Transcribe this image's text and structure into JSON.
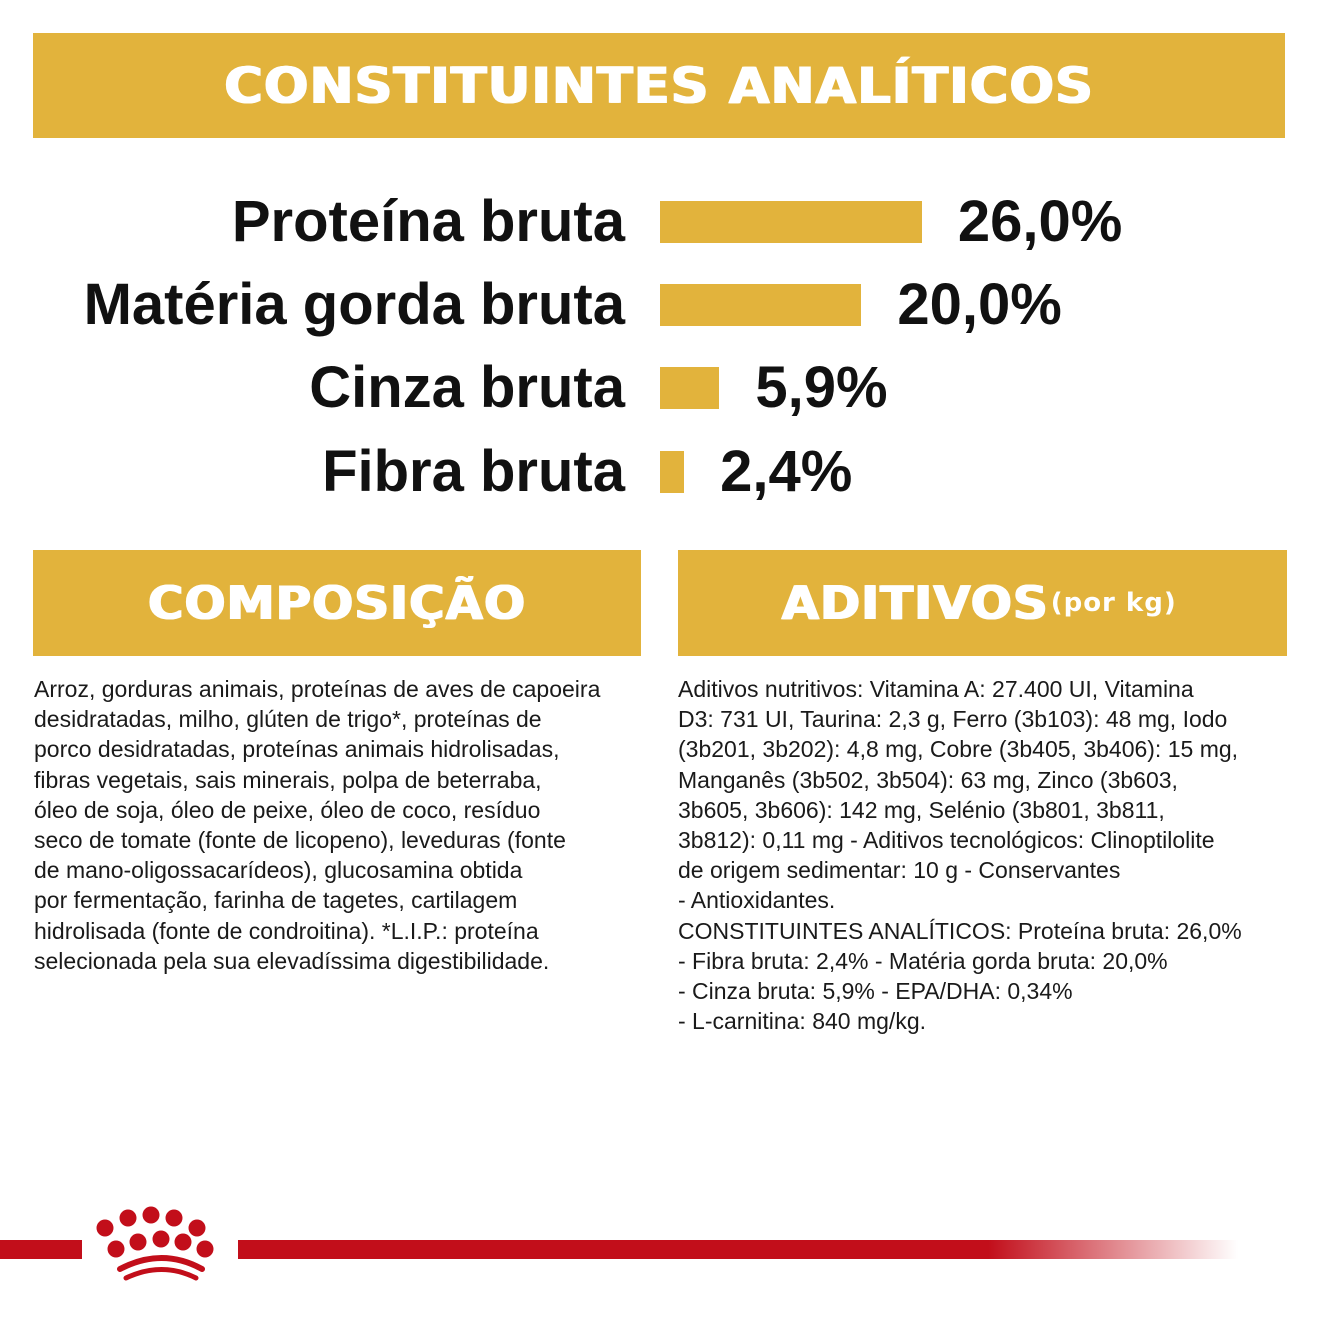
{
  "header": {
    "title": "CONSTITUINTES ANALÍTICOS"
  },
  "analytics": [
    {
      "label": "Proteína bruta",
      "value": "26,0%",
      "percent": 26.0
    },
    {
      "label": "Matéria gorda bruta",
      "value": "20,0%",
      "percent": 20.0
    },
    {
      "label": "Cinza bruta",
      "value": "5,9%",
      "percent": 5.9
    },
    {
      "label": "Fibra bruta",
      "value": "2,4%",
      "percent": 2.4
    }
  ],
  "composition": {
    "title": "COMPOSIÇÃO",
    "lines": [
      "Arroz, gorduras animais, proteínas de aves de capoeira",
      "desidratadas, milho, glúten de trigo*, proteínas de",
      "porco desidratadas, proteínas animais hidrolisadas,",
      "fibras vegetais, sais minerais, polpa de beterraba,",
      "óleo de soja, óleo de peixe, óleo de coco, resíduo",
      "seco de tomate (fonte de licopeno), leveduras (fonte",
      "de mano-oligossacarídeos), glucosamina obtida",
      "por fermentação, farinha de tagetes, cartilagem",
      "hidrolisada (fonte de condroitina). *L.I.P.: proteína",
      "selecionada pela sua elevadíssima digestibilidade."
    ]
  },
  "additives": {
    "title": "ADITIVOS",
    "title_suffix": "(por kg)",
    "lines": [
      "Aditivos nutritivos: Vitamina A: 27.400 UI, Vitamina",
      "D3: 731 UI, Taurina: 2,3 g, Ferro (3b103): 48 mg, Iodo",
      "(3b201, 3b202): 4,8 mg, Cobre (3b405, 3b406): 15 mg,",
      "Manganês (3b502, 3b504): 63 mg, Zinco (3b603,",
      "3b605, 3b606): 142 mg, Selénio (3b801, 3b811,",
      "3b812): 0,11 mg - Aditivos tecnológicos: Clinoptilolite",
      "de origem sedimentar: 10 g - Conservantes",
      "- Antioxidantes.",
      "CONSTITUINTES ANALÍTICOS: Proteína bruta: 26,0%",
      "- Fibra bruta: 2,4% - Matéria gorda bruta: 20,0%",
      "- Cinza bruta: 5,9% - EPA/DHA: 0,34%",
      "- L-carnitina: 840 mg/kg."
    ]
  },
  "colors": {
    "accent": "#E2B33C",
    "brand_red": "#C20E1A"
  },
  "logo": {
    "icon": "royal-canin-crown-icon"
  }
}
